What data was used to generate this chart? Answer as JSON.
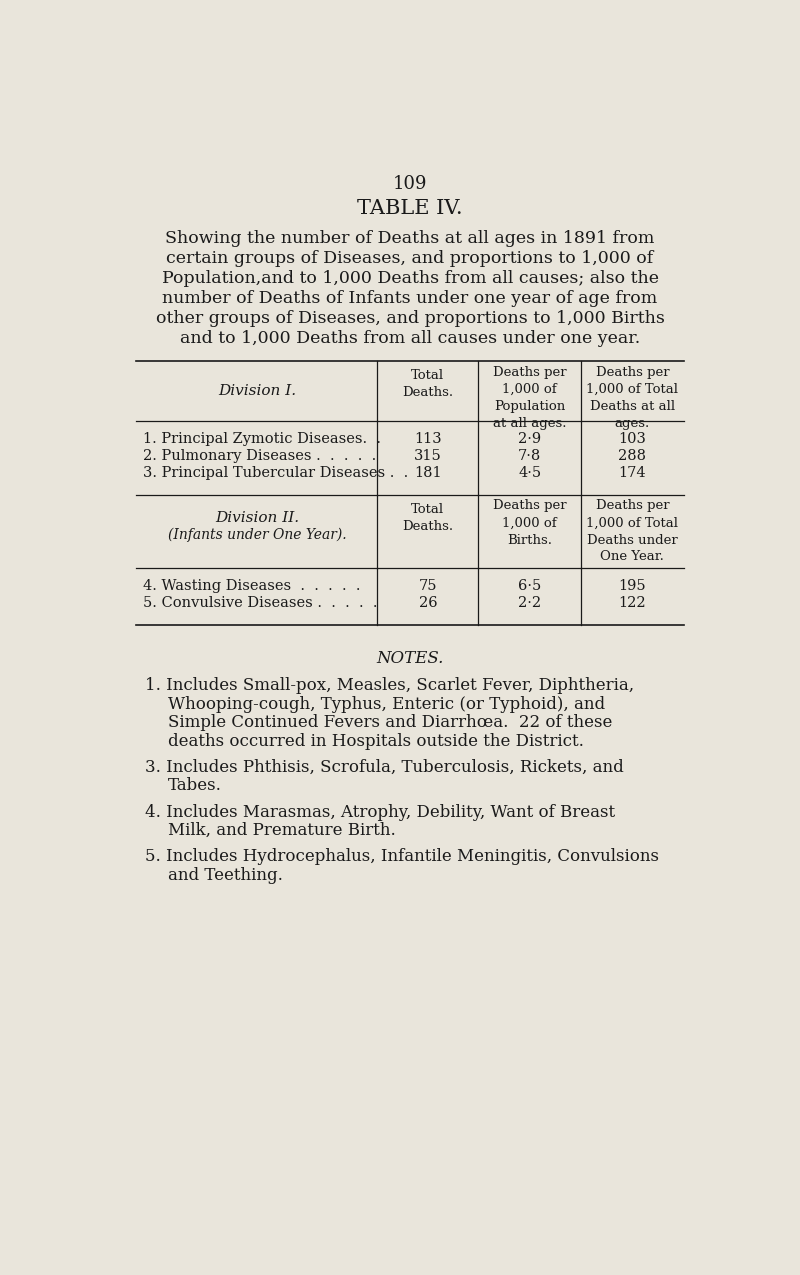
{
  "page_number": "109",
  "title": "TABLE IV.",
  "subtitle_lines": [
    "Showing the number of Deaths at all ages in 1891 from",
    "certain groups of Diseases, and proportions to 1,000 of",
    "Population,and to 1,000 Deaths from all causes; also the",
    "number of Deaths of Infants under one year of age from",
    "other groups of Diseases, and proportions to 1,000 Births",
    "and to 1,000 Deaths from all causes under one year."
  ],
  "bg_color": "#e9e5db",
  "text_color": "#1a1a1a",
  "div1_header": "Division I.",
  "div1_col1": "Total\nDeaths.",
  "div1_col2": "Deaths per\n1,000 of\nPopulation\nat all ages.",
  "div1_col3": "Deaths per\n1,000 of Total\nDeaths at all\nages.",
  "div1_rows": [
    {
      "label": "1. Principal Zymotic Diseases.  .",
      "col1": "113",
      "col2": "2·9",
      "col3": "103"
    },
    {
      "label": "2. Pulmonary Diseases .  .  .  .  .",
      "col1": "315",
      "col2": "7·8",
      "col3": "288"
    },
    {
      "label": "3. Principal Tubercular Diseases .  .",
      "col1": "181",
      "col2": "4·5",
      "col3": "174"
    }
  ],
  "div2_header_line1": "Division II.",
  "div2_header_line2": "(Infants under One Year).",
  "div2_col1": "Total\nDeaths.",
  "div2_col2": "Deaths per\n1,000 of\nBirths.",
  "div2_col3": "Deaths per\n1,000 of Total\nDeaths under\nOne Year.",
  "div2_rows": [
    {
      "label": "4. Wasting Diseases  .  .  .  .  .",
      "col1": "75",
      "col2": "6·5",
      "col3": "195"
    },
    {
      "label": "5. Convulsive Diseases .  .  .  .  .",
      "col1": "26",
      "col2": "2·2",
      "col3": "122"
    }
  ],
  "notes_title": "NOTES.",
  "notes": [
    {
      "num": "1.",
      "lines": [
        "Includes Small-pox, Measles, Scarlet Fever, Diphtheria,",
        "Whooping-cough, Typhus, Enteric (or Typhoid), and",
        "Simple Continued Fevers and Diarrhœa.  22 of these",
        "deaths occurred in Hospitals outside the District."
      ]
    },
    {
      "num": "3.",
      "lines": [
        "Includes Phthisis, Scrofula, Tuberculosis, Rickets, and",
        "Tabes."
      ]
    },
    {
      "num": "4.",
      "lines": [
        "Includes Marasmas, Atrophy, Debility, Want of Breast",
        "Milk, and Premature Birth."
      ]
    },
    {
      "num": "5.",
      "lines": [
        "Includes Hydrocephalus, Infantile Meningitis, Convulsions",
        "and Teething."
      ]
    }
  ]
}
